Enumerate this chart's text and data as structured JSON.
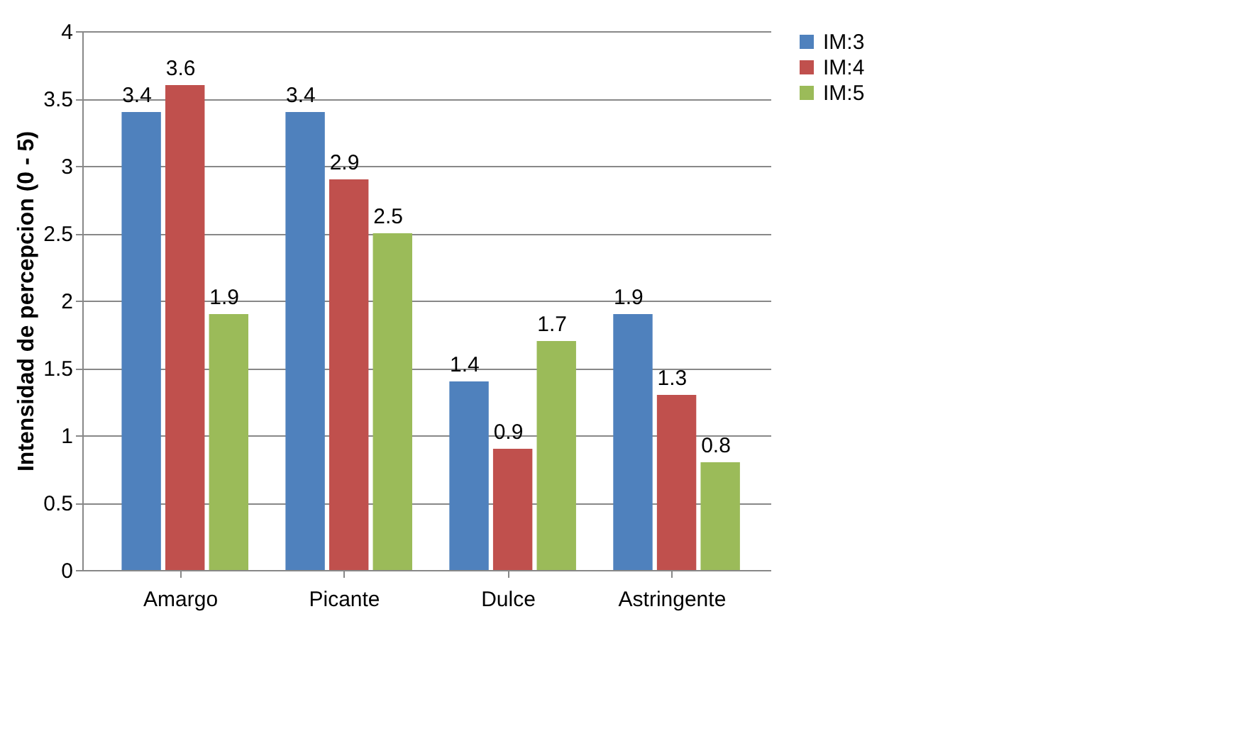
{
  "chart_data": {
    "type": "bar",
    "ylabel": "Intensidad de percepcion (0 - 5)",
    "categories": [
      "Amargo",
      "Picante",
      "Dulce",
      "Astringente"
    ],
    "series": [
      {
        "name": "IM:3",
        "color": "#4f81bd",
        "values": [
          3.4,
          3.4,
          1.4,
          1.9
        ]
      },
      {
        "name": "IM:4",
        "color": "#c0504d",
        "values": [
          3.6,
          2.9,
          0.9,
          1.3
        ]
      },
      {
        "name": "IM:5",
        "color": "#9bbb59",
        "values": [
          1.9,
          2.5,
          1.7,
          0.8
        ]
      }
    ],
    "ylim": [
      0,
      4
    ],
    "yticks": [
      0,
      0.5,
      1,
      1.5,
      2,
      2.5,
      3,
      3.5,
      4
    ],
    "grid": "y",
    "legend": "right",
    "data_labels": true
  }
}
